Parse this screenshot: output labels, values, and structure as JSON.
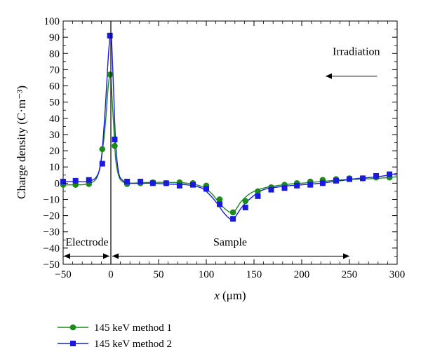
{
  "chart_data": {
    "type": "line",
    "xlabel": "x (μm)",
    "xlabel_var": "x",
    "xlabel_unit": "(μm)",
    "ylabel": "Charge density (C·m⁻³)",
    "xlim": [
      -50,
      300
    ],
    "ylim": [
      -50,
      100
    ],
    "xticks": [
      -50,
      0,
      50,
      100,
      150,
      200,
      250,
      300
    ],
    "xtick_labels": [
      "−50",
      "0",
      "50",
      "100",
      "150",
      "200",
      "250",
      "300"
    ],
    "yticks": [
      -50,
      -40,
      -30,
      -20,
      -10,
      0,
      10,
      20,
      30,
      40,
      50,
      60,
      70,
      80,
      90,
      100
    ],
    "ytick_labels": [
      "−50",
      "−40",
      "−30",
      "−20",
      "−10",
      "0",
      "10",
      "20",
      "30",
      "40",
      "50",
      "60",
      "70",
      "80",
      "90",
      "100"
    ],
    "grid": false,
    "legend_position": "below",
    "annotations": {
      "irradiation": "Irradiation",
      "electrode": "Electrode",
      "sample": "Sample",
      "electrode_span": [
        -50,
        0
      ],
      "sample_span": [
        0,
        250
      ],
      "arrow_y": -45
    },
    "series": [
      {
        "name": "145 keV method 1",
        "color": "#1a8a1a",
        "marker": "circle",
        "line": [
          [
            -50,
            -1
          ],
          [
            -35,
            -1
          ],
          [
            -25,
            -0.5
          ],
          [
            -15,
            3
          ],
          [
            -10,
            15
          ],
          [
            -6,
            35
          ],
          [
            -3,
            58
          ],
          [
            -1,
            67
          ],
          [
            0,
            65
          ],
          [
            1,
            55
          ],
          [
            3,
            35
          ],
          [
            5,
            15
          ],
          [
            8,
            5
          ],
          [
            12,
            1
          ],
          [
            20,
            0
          ],
          [
            40,
            0.5
          ],
          [
            60,
            0.5
          ],
          [
            80,
            0
          ],
          [
            95,
            -2
          ],
          [
            105,
            -6
          ],
          [
            112,
            -11
          ],
          [
            118,
            -15
          ],
          [
            125,
            -18
          ],
          [
            130,
            -17
          ],
          [
            137,
            -11
          ],
          [
            147,
            -6
          ],
          [
            160,
            -3
          ],
          [
            180,
            -1
          ],
          [
            200,
            0
          ],
          [
            220,
            1
          ],
          [
            240,
            2
          ],
          [
            260,
            2.5
          ],
          [
            280,
            3
          ],
          [
            300,
            4
          ]
        ],
        "points": [
          [
            -50,
            -1
          ],
          [
            -37,
            -1
          ],
          [
            -23,
            -0.5
          ],
          [
            -9,
            21
          ],
          [
            -1,
            67
          ],
          [
            4,
            23
          ],
          [
            17,
            -0.5
          ],
          [
            31,
            0
          ],
          [
            44,
            0.5
          ],
          [
            58,
            0
          ],
          [
            72,
            0.5
          ],
          [
            86,
            0
          ],
          [
            100,
            -1.5
          ],
          [
            114,
            -10
          ],
          [
            128,
            -18
          ],
          [
            141,
            -11
          ],
          [
            154,
            -5
          ],
          [
            168,
            -2.5
          ],
          [
            182,
            -1
          ],
          [
            195,
            0
          ],
          [
            209,
            1
          ],
          [
            222,
            2
          ],
          [
            236,
            2.5
          ],
          [
            250,
            3
          ],
          [
            264,
            3
          ],
          [
            278,
            3.5
          ],
          [
            292,
            3.5
          ]
        ]
      },
      {
        "name": "145 keV method 2",
        "color": "#1a1adc",
        "marker": "square",
        "line": [
          [
            -50,
            1
          ],
          [
            -35,
            1
          ],
          [
            -25,
            1
          ],
          [
            -15,
            4
          ],
          [
            -10,
            15
          ],
          [
            -6,
            45
          ],
          [
            -3,
            75
          ],
          [
            -1,
            90
          ],
          [
            0,
            92
          ],
          [
            1,
            85
          ],
          [
            3,
            55
          ],
          [
            5,
            25
          ],
          [
            8,
            7
          ],
          [
            12,
            2
          ],
          [
            20,
            0
          ],
          [
            40,
            0
          ],
          [
            60,
            -0.5
          ],
          [
            80,
            -1
          ],
          [
            95,
            -3
          ],
          [
            105,
            -8
          ],
          [
            112,
            -13
          ],
          [
            118,
            -18
          ],
          [
            125,
            -22
          ],
          [
            130,
            -21
          ],
          [
            137,
            -15
          ],
          [
            147,
            -9
          ],
          [
            160,
            -4
          ],
          [
            180,
            -2
          ],
          [
            200,
            -1
          ],
          [
            220,
            0
          ],
          [
            240,
            1.5
          ],
          [
            260,
            3
          ],
          [
            280,
            4
          ],
          [
            300,
            6
          ]
        ],
        "points": [
          [
            -50,
            1
          ],
          [
            -37,
            1.5
          ],
          [
            -23,
            2
          ],
          [
            -9,
            12
          ],
          [
            -1,
            91
          ],
          [
            4,
            27
          ],
          [
            17,
            1
          ],
          [
            31,
            1
          ],
          [
            44,
            0
          ],
          [
            58,
            0
          ],
          [
            72,
            -1.5
          ],
          [
            86,
            -1
          ],
          [
            100,
            -3.5
          ],
          [
            114,
            -13
          ],
          [
            128,
            -22
          ],
          [
            141,
            -15
          ],
          [
            154,
            -8
          ],
          [
            168,
            -4
          ],
          [
            182,
            -3
          ],
          [
            195,
            -1.5
          ],
          [
            209,
            -1
          ],
          [
            222,
            0
          ],
          [
            236,
            1.5
          ],
          [
            250,
            2.5
          ],
          [
            264,
            3
          ],
          [
            278,
            4.5
          ],
          [
            292,
            5.5
          ]
        ]
      }
    ]
  }
}
